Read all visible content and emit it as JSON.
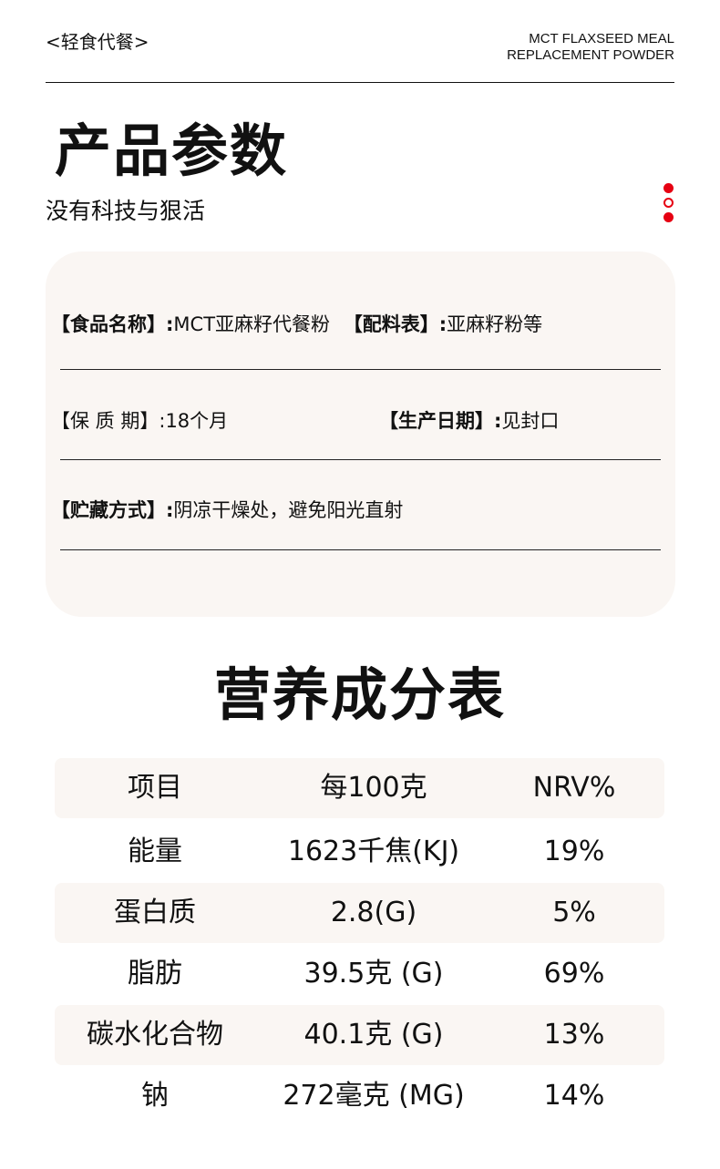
{
  "header": {
    "tag": "<轻食代餐>",
    "english_line1": "MCT FLAXSEED MEAL",
    "english_line2": "REPLACEMENT POWDER"
  },
  "section1": {
    "title": "产品参数",
    "subtitle": "没有科技与狠活"
  },
  "params": {
    "name_label": "【食品名称】:",
    "name_value": "MCT亚麻籽代餐粉",
    "ingredients_label": "【配料表】:",
    "ingredients_value": "亚麻籽粉等",
    "shelf_label": "【保 质 期】:",
    "shelf_value": "18个月",
    "date_label": "【生产日期】:",
    "date_value": "见封口",
    "storage_label": "【贮藏方式】:",
    "storage_value": "阴凉干燥处，避免阳光直射"
  },
  "section2": {
    "title": "营养成分表"
  },
  "nutrition": {
    "headers": [
      "项目",
      "每100克",
      "NRV%"
    ],
    "rows": [
      [
        "能量",
        "1623千焦(KJ)",
        "19%"
      ],
      [
        "蛋白质",
        "2.8(G)",
        "5%"
      ],
      [
        "脂肪",
        "39.5克 (G)",
        "69%"
      ],
      [
        "碳水化合物",
        "40.1克 (G)",
        "13%"
      ],
      [
        "钠",
        "272毫克 (MG)",
        "14%"
      ]
    ]
  },
  "colors": {
    "accent": "#e60012",
    "card_bg": "#faf6f3"
  }
}
